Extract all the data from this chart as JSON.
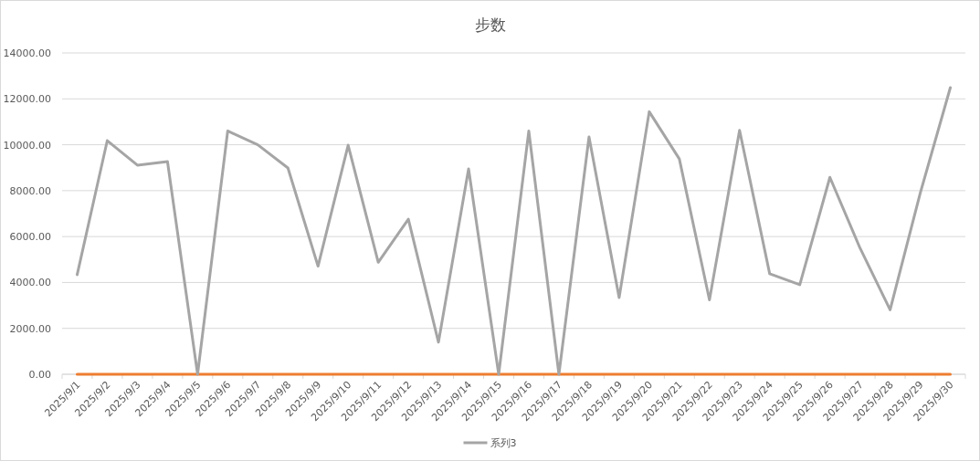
{
  "chart_data": {
    "type": "line",
    "title": "步数",
    "categories": [
      "2025/9/1",
      "2025/9/2",
      "2025/9/3",
      "2025/9/4",
      "2025/9/5",
      "2025/9/6",
      "2025/9/7",
      "2025/9/8",
      "2025/9/9",
      "2025/9/10",
      "2025/9/11",
      "2025/9/12",
      "2025/9/13",
      "2025/9/14",
      "2025/9/15",
      "2025/9/16",
      "2025/9/17",
      "2025/9/18",
      "2025/9/19",
      "2025/9/20",
      "2025/9/21",
      "2025/9/22",
      "2025/9/23",
      "2025/9/24",
      "2025/9/25",
      "2025/9/26",
      "2025/9/27",
      "2025/9/28",
      "2025/9/29",
      "2025/9/30"
    ],
    "series": [
      {
        "color": "#ed7d31",
        "values": [
          0,
          0,
          0,
          0,
          0,
          0,
          0,
          0,
          0,
          0,
          0,
          0,
          0,
          0,
          0,
          0,
          0,
          0,
          0,
          0,
          0,
          0,
          0,
          0,
          0,
          0,
          0,
          0,
          0,
          0
        ]
      },
      {
        "name": "系列3",
        "color": "#a5a5a5",
        "values": [
          4340,
          10180,
          9110,
          9270,
          0,
          10600,
          10000,
          8990,
          4710,
          9980,
          4880,
          6760,
          1400,
          8950,
          0,
          10600,
          0,
          10340,
          3340,
          11440,
          9380,
          3240,
          10630,
          4380,
          3900,
          8580,
          5500,
          2810,
          7890,
          12490
        ]
      }
    ],
    "ylim": [
      0,
      14000
    ],
    "yticks": [
      {
        "value": 0,
        "label": "0.00"
      },
      {
        "value": 2000,
        "label": "2000.00"
      },
      {
        "value": 4000,
        "label": "4000.00"
      },
      {
        "value": 6000,
        "label": "6000.00"
      },
      {
        "value": 8000,
        "label": "8000.00"
      },
      {
        "value": 10000,
        "label": "10000.00"
      },
      {
        "value": 12000,
        "label": "12000.00"
      },
      {
        "value": 14000,
        "label": "14000.00"
      }
    ],
    "grid": "y",
    "legend": "bottom",
    "marker": "none",
    "line_style": "solid"
  }
}
